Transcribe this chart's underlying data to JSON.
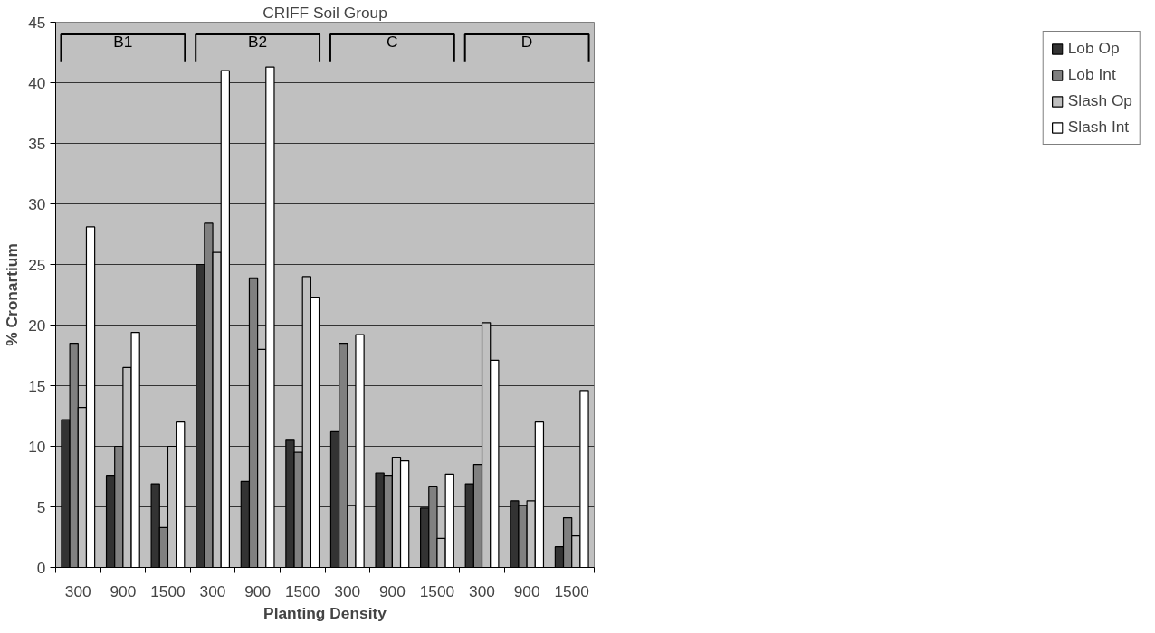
{
  "chart_data": {
    "type": "bar",
    "title": "CRIFF Soil Group",
    "xlabel": "Planting Density",
    "ylabel": "% Cronartium",
    "categories": [
      "300",
      "900",
      "1500",
      "300",
      "900",
      "1500",
      "300",
      "900",
      "1500",
      "300",
      "900",
      "1500"
    ],
    "series": [
      {
        "name": "Lob Op",
        "color": "#333333",
        "values": [
          12.2,
          7.6,
          6.9,
          25,
          7.1,
          10.5,
          11.2,
          7.8,
          4.9,
          6.9,
          5.5,
          1.7
        ]
      },
      {
        "name": "Lob Int",
        "color": "#808080",
        "values": [
          18.5,
          10,
          3.3,
          28.4,
          23.9,
          9.5,
          18.5,
          7.6,
          6.7,
          8.5,
          5.1,
          4.1
        ]
      },
      {
        "name": "Slash Op",
        "color": "#c0c0c0",
        "values": [
          13.2,
          16.5,
          10,
          26,
          18,
          24,
          5.1,
          9.1,
          2.4,
          20.2,
          5.5,
          2.6
        ]
      },
      {
        "name": "Slash Int",
        "color": "#ffffff",
        "values": [
          28.1,
          19.4,
          12,
          41,
          41.3,
          22.3,
          19.2,
          8.8,
          7.7,
          17.1,
          12,
          14.6
        ]
      }
    ],
    "annotations": [
      "B1",
      "B2",
      "C",
      "D"
    ],
    "ylim": [
      0,
      45
    ],
    "yticks": [
      0,
      5,
      10,
      15,
      20,
      25,
      30,
      35,
      40,
      45
    ],
    "grid": "y",
    "legend": "right"
  }
}
